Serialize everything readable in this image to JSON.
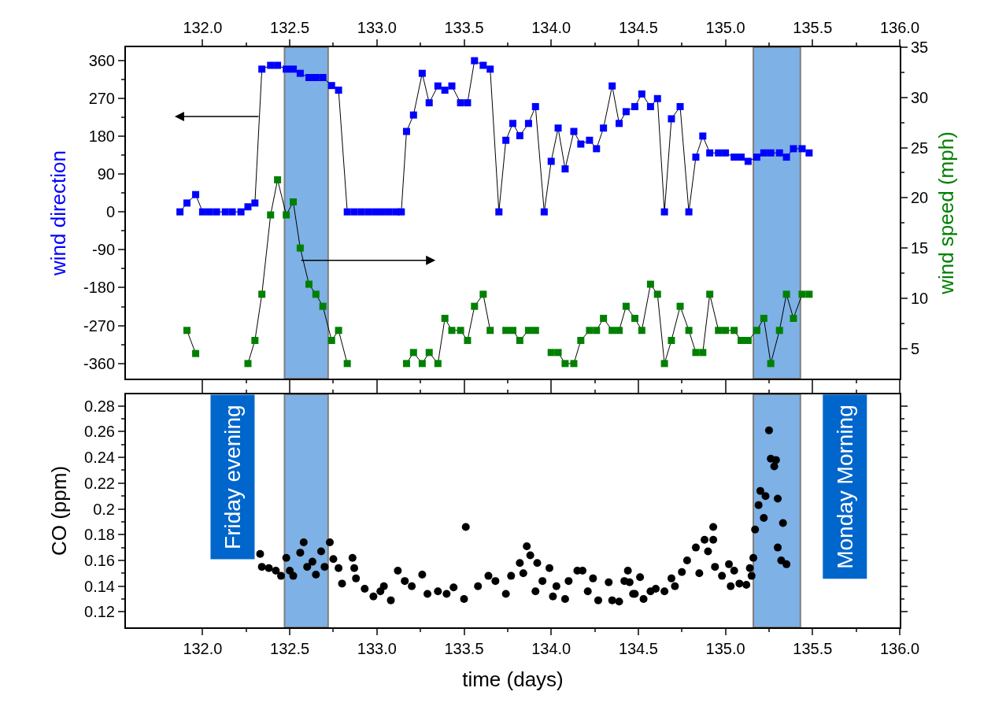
{
  "chart_data": [
    {
      "type": "line",
      "marker": "square",
      "ylabel": "wind direction",
      "y2label": "wind speed (mph)",
      "xlim": [
        131.56,
        136.0
      ],
      "xticks": [
        {
          "value": 132.0,
          "label": "132.0"
        },
        132.5,
        {
          "value": 133.0,
          "label": "133.0"
        },
        133.5,
        {
          "value": 134.0,
          "label": "134.0"
        },
        134.5,
        {
          "value": 135.0,
          "label": "135.0"
        },
        135.5,
        {
          "value": 136.0,
          "label": "136.0"
        }
      ],
      "ylim": [
        -396,
        391
      ],
      "yticks": [
        -360,
        -270,
        -180,
        -90,
        0,
        90,
        180,
        270,
        360
      ],
      "y2lim": [
        2,
        35
      ],
      "y2ticks": [
        5,
        10,
        15,
        20,
        25,
        30,
        35
      ],
      "bands": [
        {
          "axis": "x",
          "from": 132.47,
          "to": 132.72,
          "color": "#0066cc"
        },
        {
          "axis": "x",
          "from": 135.16,
          "to": 135.43,
          "color": "#0066cc"
        }
      ],
      "series": [
        {
          "color": "#0000ff",
          "axis": "y",
          "x": [
            131.87,
            131.91,
            131.96,
            132.0,
            132.04,
            132.08,
            132.13,
            132.17,
            132.22,
            132.26,
            132.3,
            132.34,
            132.39,
            132.43,
            132.48,
            132.52,
            132.56,
            132.61,
            132.65,
            132.69,
            132.74,
            132.78,
            132.83,
            132.87,
            132.91,
            132.95,
            132.99,
            133.03,
            133.07,
            133.11,
            133.14,
            133.17,
            133.21,
            133.26,
            133.3,
            133.35,
            133.39,
            133.43,
            133.48,
            133.52,
            133.56,
            133.61,
            133.65,
            133.7,
            133.74,
            133.78,
            133.82,
            133.87,
            133.91,
            133.96,
            134.0,
            134.04,
            134.08,
            134.13,
            134.17,
            134.22,
            134.26,
            134.3,
            134.35,
            134.39,
            134.43,
            134.48,
            134.52,
            134.57,
            134.61,
            134.65,
            134.69,
            134.74,
            134.79,
            134.83,
            134.87,
            134.91,
            134.96,
            135.0,
            135.05,
            135.09,
            135.13,
            135.18,
            135.22,
            135.26,
            135.31,
            135.35,
            135.39,
            135.44,
            135.48
          ],
          "values": [
            0,
            21,
            41,
            0,
            0,
            0,
            0,
            0,
            0,
            12,
            21,
            339,
            348,
            348,
            339,
            339,
            329,
            319,
            319,
            319,
            300,
            289,
            0,
            0,
            0,
            0,
            0,
            0,
            0,
            0,
            0,
            191,
            230,
            329,
            259,
            299,
            289,
            299,
            259,
            259,
            359,
            348,
            339,
            0,
            170,
            210,
            181,
            210,
            250,
            0,
            120,
            199,
            102,
            191,
            161,
            170,
            150,
            199,
            299,
            210,
            238,
            250,
            280,
            250,
            269,
            0,
            221,
            250,
            0,
            130,
            180,
            140,
            140,
            140,
            130,
            130,
            120,
            130,
            140,
            140,
            140,
            130,
            150,
            150,
            140
          ]
        },
        {
          "color": "#008000",
          "axis": "y2",
          "x": [
            131.91,
            131.96,
            132.1,
            132.26,
            132.3,
            132.34,
            132.39,
            132.43,
            132.48,
            132.52,
            132.56,
            132.61,
            132.65,
            132.69,
            132.74,
            132.78,
            132.83,
            133.0,
            133.17,
            133.21,
            133.26,
            133.3,
            133.35,
            133.39,
            133.43,
            133.48,
            133.52,
            133.56,
            133.61,
            133.65,
            133.7,
            133.74,
            133.78,
            133.82,
            133.87,
            133.91,
            133.95,
            134.0,
            134.04,
            134.08,
            134.13,
            134.17,
            134.22,
            134.26,
            134.3,
            134.35,
            134.39,
            134.43,
            134.48,
            134.52,
            134.57,
            134.61,
            134.65,
            134.69,
            134.74,
            134.79,
            134.83,
            134.87,
            134.91,
            134.96,
            135.0,
            135.05,
            135.09,
            135.13,
            135.18,
            135.22,
            135.26,
            135.31,
            135.35,
            135.39,
            135.44,
            135.48
          ],
          "values": [
            6.8,
            4.5,
            null,
            3.5,
            5.8,
            10.4,
            18.3,
            21.8,
            18.3,
            19.6,
            15.0,
            11.4,
            10.4,
            9.2,
            5.8,
            6.8,
            3.5,
            null,
            3.5,
            4.6,
            3.5,
            4.6,
            3.5,
            8.0,
            6.8,
            6.8,
            5.8,
            9.2,
            10.4,
            6.8,
            null,
            6.8,
            6.8,
            5.8,
            6.8,
            6.8,
            null,
            4.6,
            4.6,
            3.5,
            3.5,
            5.8,
            6.8,
            6.8,
            8.0,
            6.8,
            6.8,
            9.2,
            8.0,
            6.8,
            11.4,
            10.4,
            3.5,
            5.8,
            9.2,
            6.8,
            4.6,
            4.6,
            10.4,
            6.8,
            6.8,
            6.8,
            5.8,
            5.8,
            6.8,
            8.0,
            3.5,
            6.8,
            10.4,
            8.0,
            10.4,
            10.4
          ]
        }
      ]
    },
    {
      "type": "scatter",
      "marker": "circle",
      "xlabel": "time (days)",
      "ylabel": "CO (ppm)",
      "xlim": [
        131.56,
        136.0
      ],
      "xticks": [
        {
          "value": 132.0,
          "label": "132.0"
        },
        132.5,
        {
          "value": 133.0,
          "label": "133.0"
        },
        133.5,
        {
          "value": 134.0,
          "label": "134.0"
        },
        134.5,
        {
          "value": 135.0,
          "label": "135.0"
        },
        135.5,
        {
          "value": 136.0,
          "label": "136.0"
        }
      ],
      "ylim": [
        0.108,
        0.289
      ],
      "yticks": [
        0.12,
        0.14,
        0.16,
        0.18,
        0.2,
        0.22,
        0.24,
        0.26,
        0.28
      ],
      "bands": [
        {
          "axis": "x",
          "from": 132.47,
          "to": 132.72,
          "label": "Friday evening",
          "color": "#0066cc"
        },
        {
          "axis": "x",
          "from": 135.16,
          "to": 135.43,
          "label": "Monday Morning",
          "color": "#0066cc"
        }
      ],
      "series": [
        {
          "color": "#000000",
          "x": [
            132.33,
            132.34,
            132.38,
            132.42,
            132.45,
            132.48,
            132.5,
            132.52,
            132.56,
            132.58,
            132.6,
            132.63,
            132.65,
            132.68,
            132.7,
            132.73,
            132.75,
            132.78,
            132.8,
            132.86,
            132.87,
            132.88,
            132.93,
            132.98,
            133.02,
            133.04,
            133.08,
            133.12,
            133.16,
            133.2,
            133.26,
            133.29,
            133.35,
            133.4,
            133.44,
            133.5,
            133.51,
            133.58,
            133.64,
            133.68,
            133.74,
            133.77,
            133.82,
            133.84,
            133.86,
            133.88,
            133.91,
            133.92,
            133.95,
            133.99,
            134.01,
            134.03,
            134.08,
            134.1,
            134.15,
            134.18,
            134.21,
            134.24,
            134.27,
            134.33,
            134.35,
            134.39,
            134.42,
            134.44,
            134.45,
            134.47,
            134.48,
            134.51,
            134.53,
            134.57,
            134.6,
            134.65,
            134.69,
            134.71,
            134.75,
            134.78,
            134.83,
            134.85,
            134.88,
            134.9,
            134.93,
            134.93,
            134.94,
            134.98,
            135.02,
            135.03,
            135.05,
            135.08,
            135.12,
            135.14,
            135.15,
            135.16,
            135.17,
            135.19,
            135.2,
            135.22,
            135.23,
            135.25,
            135.26,
            135.28,
            135.29,
            135.3,
            135.3,
            135.32,
            135.33,
            135.35
          ],
          "values": [
            0.165,
            0.155,
            0.154,
            0.152,
            0.148,
            0.162,
            0.152,
            0.148,
            0.166,
            0.174,
            0.155,
            0.159,
            0.149,
            0.167,
            0.155,
            0.174,
            0.161,
            0.154,
            0.142,
            0.162,
            0.154,
            0.146,
            0.138,
            0.132,
            0.136,
            0.14,
            0.129,
            0.152,
            0.144,
            0.14,
            0.149,
            0.134,
            0.136,
            0.134,
            0.139,
            0.13,
            0.186,
            0.14,
            0.148,
            0.144,
            0.134,
            0.148,
            0.158,
            0.15,
            0.171,
            0.164,
            0.136,
            0.158,
            0.144,
            0.154,
            0.132,
            0.14,
            0.13,
            0.144,
            0.152,
            0.152,
            0.136,
            0.146,
            0.129,
            0.143,
            0.129,
            0.128,
            0.144,
            0.152,
            0.143,
            0.134,
            0.134,
            0.147,
            0.13,
            0.136,
            0.138,
            0.136,
            0.146,
            0.14,
            0.151,
            0.16,
            0.17,
            0.15,
            0.176,
            0.167,
            0.186,
            0.176,
            0.155,
            0.148,
            0.157,
            0.14,
            0.152,
            0.142,
            0.141,
            0.154,
            0.148,
            0.162,
            0.184,
            0.203,
            0.214,
            0.193,
            0.21,
            0.261,
            0.239,
            0.233,
            0.238,
            0.208,
            0.17,
            0.16,
            0.189,
            0.157
          ]
        }
      ]
    }
  ]
}
